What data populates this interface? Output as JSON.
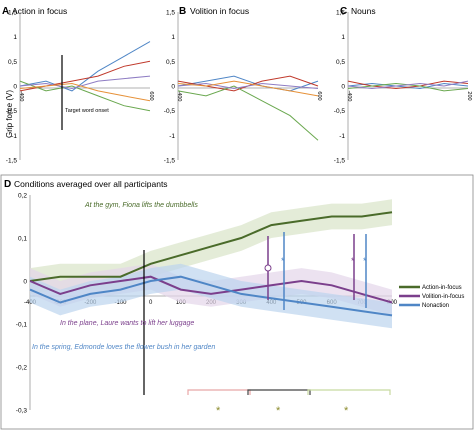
{
  "panel_a": {
    "letter": "A",
    "title": "Action in focus",
    "ylabel": "Grip force (V)",
    "y_ticks": [
      "1,5",
      "1",
      "0,5",
      "0",
      "-0,5",
      "-1",
      "-1,5"
    ],
    "x_ticks": [
      "-400",
      "",
      "",
      "",
      "",
      "600"
    ],
    "onset_label": "Target word onset"
  },
  "panel_b": {
    "letter": "B",
    "title": "Volition in focus",
    "y_ticks": [
      "1,5",
      "1",
      "0,5",
      "0",
      "-0,5",
      "-1",
      "-1,5"
    ],
    "x_ticks": [
      "-400",
      "",
      "",
      "",
      "",
      "600"
    ]
  },
  "panel_c": {
    "letter": "C",
    "title": "Nouns",
    "y_ticks": [
      "1,5",
      "1",
      "0,5",
      "0",
      "-0,5",
      "-1",
      "-1,5"
    ],
    "x_ticks": [
      "-400",
      "",
      "200"
    ]
  },
  "panel_d": {
    "letter": "D",
    "title": "Conditions averaged over all participants",
    "sentence_action": "At the gym, Fiona lifts the dumbbells",
    "sentence_volition": "In the plane, Laure wants to lift her luggage",
    "sentence_noun": "In the spring, Edmonde loves the flower bush in her garden",
    "markers": {
      "circle": "o",
      "star": "*",
      "significance": "*"
    },
    "colors": {
      "action": "#4a6b2a",
      "volition": "#7b3f8c",
      "noun": "#4f86c6"
    }
  },
  "chart_data": [
    {
      "type": "line",
      "panel": "A",
      "title": "Action in focus",
      "ylabel": "Grip force (V)",
      "ylim": [
        -1.5,
        1.5
      ],
      "x": [
        -400,
        -200,
        0,
        200,
        400,
        600
      ],
      "series": [
        {
          "values": [
            0.0,
            0.1,
            -0.1,
            0.3,
            0.6,
            0.9
          ]
        },
        {
          "values": [
            -0.1,
            0.0,
            0.1,
            0.2,
            0.4,
            0.5
          ]
        },
        {
          "values": [
            0.1,
            -0.1,
            0.0,
            -0.2,
            -0.4,
            -0.5
          ]
        },
        {
          "values": [
            0.0,
            0.05,
            -0.05,
            0.1,
            0.15,
            0.2
          ]
        },
        {
          "values": [
            -0.05,
            0.0,
            0.05,
            -0.1,
            -0.2,
            -0.3
          ]
        }
      ]
    },
    {
      "type": "line",
      "panel": "B",
      "title": "Volition in focus",
      "ylim": [
        -1.5,
        1.5
      ],
      "x": [
        -400,
        -200,
        0,
        200,
        400,
        600
      ],
      "series": [
        {
          "values": [
            0.0,
            0.1,
            0.2,
            0.0,
            -0.1,
            0.1
          ]
        },
        {
          "values": [
            0.1,
            0.0,
            -0.1,
            0.1,
            0.2,
            0.0
          ]
        },
        {
          "values": [
            -0.1,
            -0.2,
            0.0,
            -0.3,
            -0.6,
            -1.1
          ]
        },
        {
          "values": [
            0.0,
            0.05,
            -0.05,
            0.05,
            0.0,
            -0.05
          ]
        },
        {
          "values": [
            0.05,
            0.0,
            0.1,
            0.0,
            -0.1,
            -0.2
          ]
        }
      ]
    },
    {
      "type": "line",
      "panel": "C",
      "title": "Nouns",
      "ylim": [
        -1.5,
        1.5
      ],
      "x": [
        -400,
        -200,
        0,
        200,
        400,
        600
      ],
      "series": [
        {
          "values": [
            0.0,
            0.05,
            0.0,
            -0.05,
            0.05,
            0.0
          ]
        },
        {
          "values": [
            0.1,
            0.0,
            -0.05,
            0.0,
            0.1,
            0.05
          ]
        },
        {
          "values": [
            -0.05,
            0.0,
            0.05,
            0.0,
            -0.1,
            -0.05
          ]
        },
        {
          "values": [
            0.0,
            -0.05,
            0.0,
            0.05,
            0.0,
            0.1
          ]
        }
      ]
    },
    {
      "type": "line",
      "panel": "D",
      "title": "Conditions averaged over all participants",
      "ylim": [
        -0.3,
        0.2
      ],
      "y_ticks": [
        "0,2",
        "0,1",
        "0",
        "-0,1",
        "-0,2",
        "-0,3"
      ],
      "x_ticks": [
        "-400",
        "-300",
        "-200",
        "-100",
        "0",
        "100",
        "200",
        "300",
        "400",
        "500",
        "600",
        "700",
        "800"
      ],
      "legend_position": "right",
      "x": [
        -400,
        -300,
        -200,
        -100,
        0,
        100,
        200,
        300,
        400,
        500,
        600,
        700,
        800
      ],
      "series": [
        {
          "name": "Action-in-focus",
          "color": "#4a6b2a",
          "values": [
            0.0,
            0.01,
            0.01,
            0.01,
            0.04,
            0.06,
            0.08,
            0.1,
            0.13,
            0.14,
            0.15,
            0.15,
            0.16
          ]
        },
        {
          "name": "Volition-in-focus",
          "color": "#7b3f8c",
          "values": [
            0.0,
            -0.03,
            -0.01,
            0.0,
            0.01,
            -0.02,
            -0.03,
            -0.02,
            -0.01,
            0.0,
            -0.01,
            -0.03,
            -0.05
          ]
        },
        {
          "name": "Nonaction",
          "color": "#4f86c6",
          "values": [
            -0.02,
            -0.05,
            -0.03,
            -0.02,
            0.0,
            0.01,
            -0.01,
            -0.03,
            -0.04,
            -0.05,
            -0.06,
            -0.07,
            -0.08
          ]
        }
      ]
    }
  ]
}
